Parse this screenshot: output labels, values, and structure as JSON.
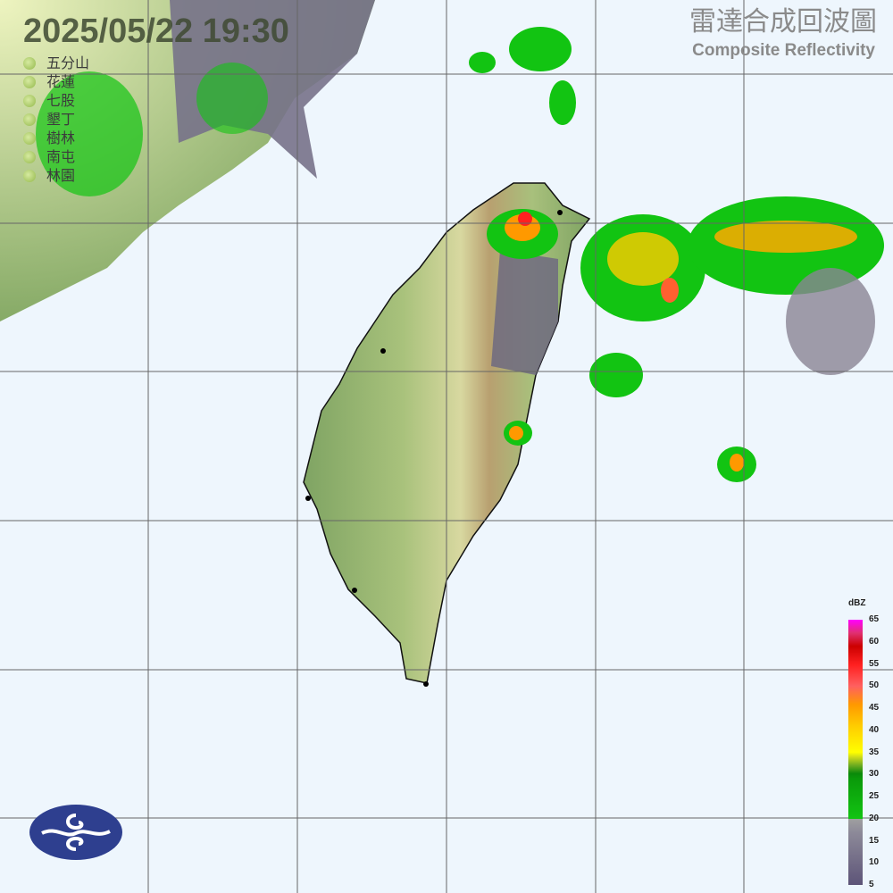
{
  "header": {
    "datetime": "2025/05/22  19:30",
    "title_cn": "雷達合成回波圖",
    "title_en": "Composite Reflectivity"
  },
  "stations": [
    {
      "name": "五分山"
    },
    {
      "name": "花蓮"
    },
    {
      "name": "七股"
    },
    {
      "name": "墾丁"
    },
    {
      "name": "樹林"
    },
    {
      "name": "南屯"
    },
    {
      "name": "林園"
    }
  ],
  "colorbar": {
    "unit": "dBZ",
    "ticks": [
      "65",
      "60",
      "55",
      "50",
      "45",
      "40",
      "35",
      "30",
      "25",
      "20",
      "15",
      "10",
      "5"
    ],
    "range": [
      5,
      65
    ]
  },
  "colors": {
    "ocean": "#eef6fd",
    "land_low": "#88ac6c",
    "weak_echo": "#8a8494",
    "echo_green": "#12c412",
    "echo_orange": "#ff9900",
    "echo_red": "#ff2020",
    "logo": "#2e3f8f"
  },
  "logo": {
    "icon": "cwa-cloud-logo"
  }
}
